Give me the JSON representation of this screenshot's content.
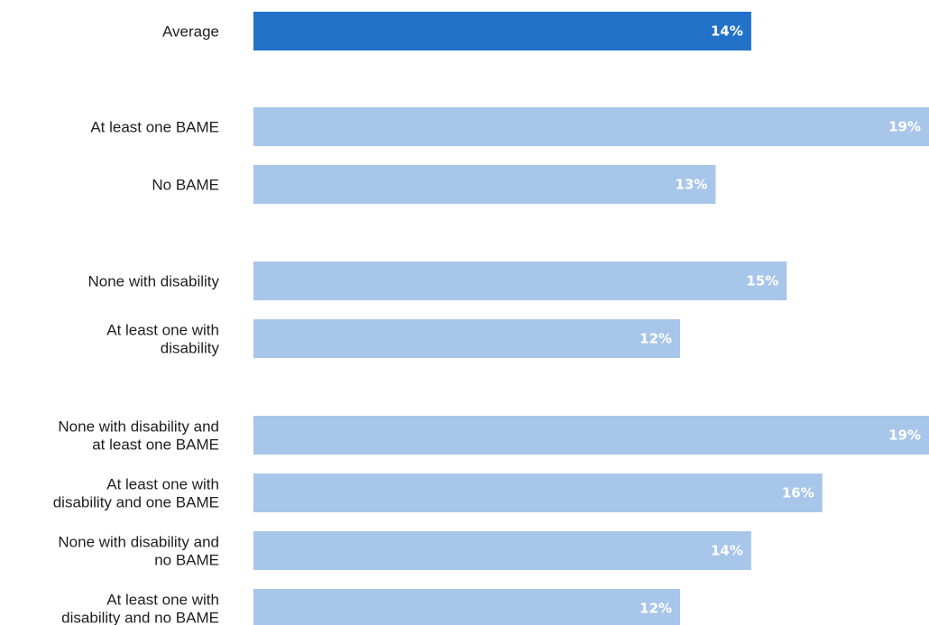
{
  "chart_data": {
    "type": "bar",
    "orientation": "horizontal",
    "title": "",
    "xlabel": "",
    "ylabel": "",
    "xlim": [
      0,
      19
    ],
    "grid": false,
    "colors": {
      "highlight": "#2272c9",
      "default": "#a8c6e9",
      "value_label": "#ffffff"
    },
    "groups": [
      {
        "categories": [
          {
            "label": [
              "Average"
            ],
            "value": 14,
            "display": "14%",
            "highlight": true
          }
        ]
      },
      {
        "categories": [
          {
            "label": [
              "At least one BAME"
            ],
            "value": 19,
            "display": "19%"
          },
          {
            "label": [
              "No BAME"
            ],
            "value": 13,
            "display": "13%"
          }
        ]
      },
      {
        "categories": [
          {
            "label": [
              "None with disability"
            ],
            "value": 15,
            "display": "15%"
          },
          {
            "label": [
              "At least one with",
              "disability"
            ],
            "value": 12,
            "display": "12%"
          }
        ]
      },
      {
        "categories": [
          {
            "label": [
              "None with disability and",
              "at least one BAME"
            ],
            "value": 19,
            "display": "19%"
          },
          {
            "label": [
              "At least one with",
              "disability and one BAME"
            ],
            "value": 16,
            "display": "16%"
          },
          {
            "label": [
              "None with disability and",
              "no BAME"
            ],
            "value": 14,
            "display": "14%"
          },
          {
            "label": [
              "At least one with",
              "disability and no BAME"
            ],
            "value": 12,
            "display": "12%"
          }
        ]
      }
    ]
  }
}
